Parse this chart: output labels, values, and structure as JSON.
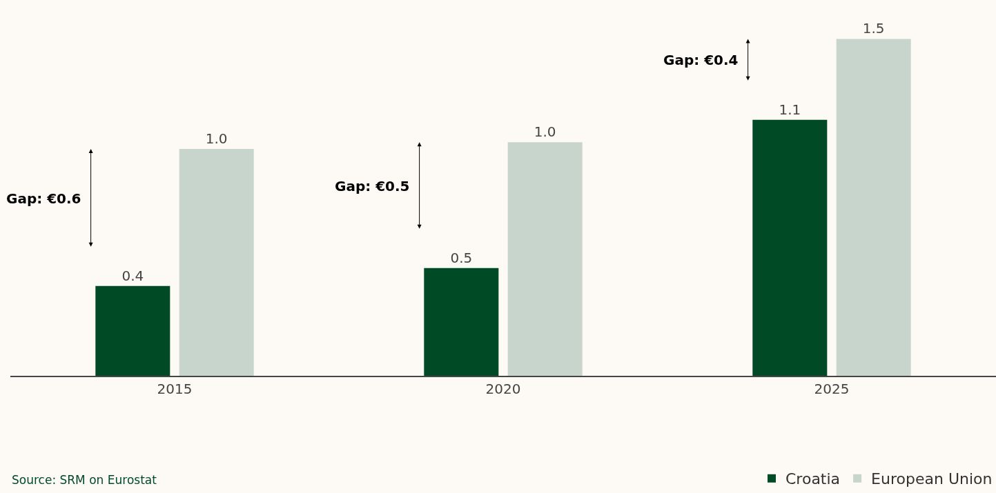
{
  "chart_data": {
    "type": "bar",
    "categories": [
      "2015",
      "2020",
      "2025"
    ],
    "series": [
      {
        "name": "Croatia",
        "color": "#004a25",
        "values": [
          0.4,
          0.48,
          1.14
        ],
        "value_labels": [
          "0.4",
          "0.5",
          "1.1"
        ]
      },
      {
        "name": "European Union",
        "color": "#c8d5cc",
        "values": [
          1.01,
          1.04,
          1.5
        ],
        "value_labels": [
          "1.0",
          "1.0",
          "1.5"
        ]
      }
    ],
    "annotations": [
      "Gap: €0.6",
      "Gap: €0.5",
      "Gap: €0.4",
      "Source: SRM on Eurostat"
    ],
    "legend": "bottom right",
    "grid": false
  }
}
